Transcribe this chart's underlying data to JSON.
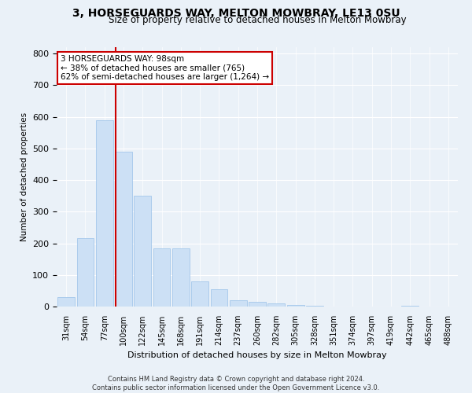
{
  "title": "3, HORSEGUARDS WAY, MELTON MOWBRAY, LE13 0SU",
  "subtitle": "Size of property relative to detached houses in Melton Mowbray",
  "xlabel": "Distribution of detached houses by size in Melton Mowbray",
  "ylabel": "Number of detached properties",
  "bar_color": "#cce0f5",
  "bar_edge_color": "#99c0e8",
  "categories": [
    "31sqm",
    "54sqm",
    "77sqm",
    "100sqm",
    "122sqm",
    "145sqm",
    "168sqm",
    "191sqm",
    "214sqm",
    "237sqm",
    "260sqm",
    "282sqm",
    "305sqm",
    "328sqm",
    "351sqm",
    "374sqm",
    "397sqm",
    "419sqm",
    "442sqm",
    "465sqm",
    "488sqm"
  ],
  "values": [
    30,
    215,
    590,
    490,
    350,
    185,
    185,
    80,
    55,
    20,
    15,
    10,
    5,
    3,
    0,
    0,
    0,
    0,
    3,
    0,
    0
  ],
  "vline_x": 3,
  "vline_color": "#cc0000",
  "annotation_text": "3 HORSEGUARDS WAY: 98sqm\n← 38% of detached houses are smaller (765)\n62% of semi-detached houses are larger (1,264) →",
  "annotation_box_color": "#ffffff",
  "annotation_box_edge": "#cc0000",
  "ylim": [
    0,
    820
  ],
  "yticks": [
    0,
    100,
    200,
    300,
    400,
    500,
    600,
    700,
    800
  ],
  "footnote": "Contains HM Land Registry data © Crown copyright and database right 2024.\nContains public sector information licensed under the Open Government Licence v3.0.",
  "background_color": "#eaf1f8",
  "plot_background": "#eaf1f8",
  "title_fontsize": 10,
  "subtitle_fontsize": 8.5
}
